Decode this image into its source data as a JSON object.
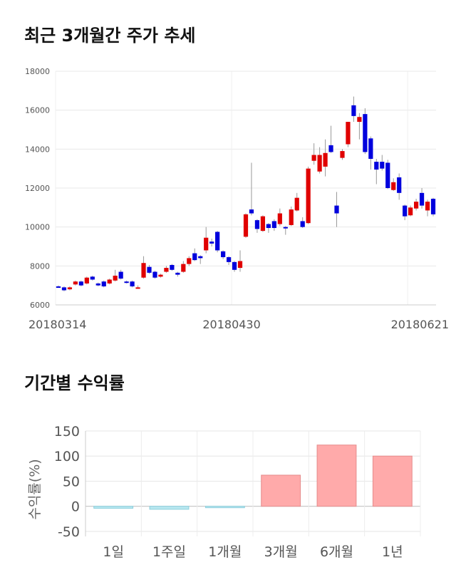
{
  "titles": {
    "price_trend": "최근 3개월간 주가 추세",
    "period_returns": "기간별 수익률"
  },
  "chart_data": [
    {
      "type": "candlestick",
      "title": "최근 3개월간 주가 추세",
      "ylim": [
        6000,
        18000
      ],
      "y_ticks": [
        6000,
        8000,
        10000,
        12000,
        14000,
        16000,
        18000
      ],
      "x_tick_labels": [
        {
          "label": "20180314",
          "index": 0
        },
        {
          "label": "20180430",
          "index": 31
        },
        {
          "label": "20180621",
          "index": 62
        }
      ],
      "grid": true,
      "colors": {
        "up": "#e00000",
        "down": "#0000dd",
        "wick": "#999999"
      },
      "candles": [
        [
          6950,
          6900,
          7000,
          6880
        ],
        [
          6900,
          6750,
          6950,
          6700
        ],
        [
          6800,
          6900,
          6950,
          6750
        ],
        [
          7050,
          7200,
          7250,
          7000
        ],
        [
          7200,
          7000,
          7250,
          6950
        ],
        [
          7100,
          7400,
          7450,
          7050
        ],
        [
          7450,
          7300,
          7500,
          7250
        ],
        [
          7100,
          7000,
          7150,
          6950
        ],
        [
          7200,
          6950,
          7250,
          6900
        ],
        [
          7100,
          7300,
          7350,
          7050
        ],
        [
          7250,
          7500,
          7800,
          7200
        ],
        [
          7700,
          7350,
          7800,
          7300
        ],
        [
          7200,
          7150,
          7250,
          7100
        ],
        [
          7200,
          6950,
          7250,
          6900
        ],
        [
          6900,
          6900,
          7000,
          6850
        ],
        [
          7400,
          8150,
          8500,
          7350
        ],
        [
          7950,
          7650,
          8050,
          7600
        ],
        [
          7700,
          7400,
          7750,
          7350
        ],
        [
          7450,
          7550,
          7600,
          7400
        ],
        [
          7700,
          7900,
          8000,
          7650
        ],
        [
          8050,
          7800,
          8100,
          7750
        ],
        [
          7650,
          7550,
          7700,
          7450
        ],
        [
          7700,
          8100,
          8250,
          7650
        ],
        [
          8100,
          8400,
          8500,
          8000
        ],
        [
          8650,
          8300,
          8900,
          8250
        ],
        [
          8500,
          8400,
          8550,
          8100
        ],
        [
          8800,
          9450,
          10000,
          8650
        ],
        [
          9250,
          9150,
          9400,
          9000
        ],
        [
          9750,
          8800,
          9800,
          8700
        ],
        [
          8750,
          8450,
          8800,
          8350
        ],
        [
          8450,
          8200,
          8500,
          8050
        ],
        [
          8200,
          7800,
          8250,
          7700
        ],
        [
          7900,
          8250,
          8800,
          7700
        ],
        [
          9500,
          10650,
          10700,
          9450
        ],
        [
          10900,
          10700,
          13300,
          10600
        ],
        [
          10350,
          9900,
          10400,
          9700
        ],
        [
          9800,
          10550,
          10600,
          9750
        ],
        [
          10150,
          9950,
          10200,
          9700
        ],
        [
          10300,
          9950,
          10400,
          9800
        ],
        [
          10150,
          10700,
          10950,
          10050
        ],
        [
          10000,
          9950,
          10050,
          9600
        ],
        [
          10100,
          10900,
          11050,
          10050
        ],
        [
          10850,
          11500,
          11750,
          10800
        ],
        [
          10300,
          10000,
          10500,
          9950
        ],
        [
          10200,
          13000,
          13100,
          10150
        ],
        [
          13400,
          13700,
          14300,
          13200
        ],
        [
          12850,
          13700,
          14100,
          12750
        ],
        [
          13100,
          13800,
          14500,
          12600
        ],
        [
          14200,
          13850,
          15200,
          13800
        ],
        [
          11100,
          10700,
          11800,
          10000
        ],
        [
          13550,
          13900,
          14000,
          13450
        ],
        [
          14250,
          15400,
          15400,
          14100
        ],
        [
          16250,
          15700,
          16700,
          15400
        ],
        [
          15400,
          15650,
          15850,
          14500
        ],
        [
          15800,
          13850,
          16100,
          13750
        ],
        [
          14550,
          13500,
          14650,
          12950
        ],
        [
          13350,
          12950,
          13500,
          12200
        ],
        [
          13350,
          13000,
          13700,
          12900
        ],
        [
          13300,
          12000,
          13450,
          11950
        ],
        [
          11900,
          12300,
          12500,
          11850
        ],
        [
          12550,
          11750,
          12750,
          11400
        ],
        [
          11100,
          10550,
          11150,
          10350
        ],
        [
          10600,
          11000,
          11100,
          10550
        ],
        [
          10950,
          11300,
          11450,
          10850
        ],
        [
          11750,
          11100,
          12000,
          10950
        ],
        [
          10850,
          11300,
          11400,
          10550
        ],
        [
          11450,
          10650,
          11500,
          10550
        ]
      ]
    },
    {
      "type": "bar",
      "title": "기간별 수익률",
      "ylabel": "수익률(%)",
      "ylim": [
        -60,
        150
      ],
      "y_ticks": [
        -50,
        0,
        50,
        100,
        150
      ],
      "categories": [
        "1일",
        "1주일",
        "1개월",
        "3개월",
        "6개월",
        "1년"
      ],
      "values": [
        -4,
        -6,
        -2,
        62,
        122,
        100
      ],
      "colors": {
        "positive_fill": "#ffaaaa",
        "positive_stroke": "#e58c8c",
        "negative_fill": "#b8e8f0",
        "negative_stroke": "#8ccfdd"
      }
    }
  ]
}
